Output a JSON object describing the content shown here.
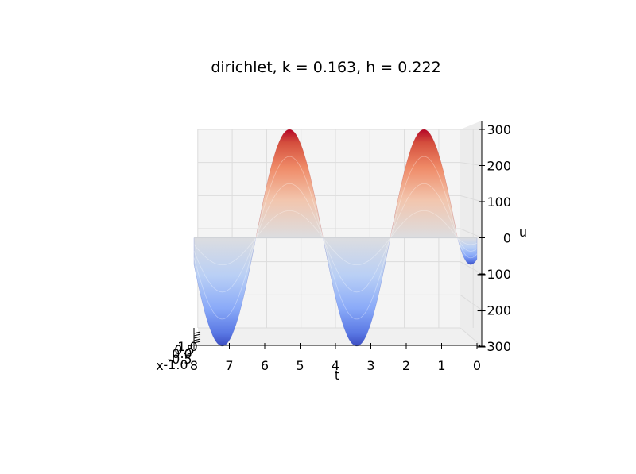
{
  "chart_data": {
    "type": "surface3d",
    "title": "dirichlet, k = 0.163, h = 0.222",
    "xlabel": "x",
    "tlabel": "t",
    "zlabel": "u",
    "t_ticks": [
      "8",
      "7",
      "6",
      "5",
      "4",
      "3",
      "2",
      "1",
      "0"
    ],
    "x_ticks": [
      "-1.0",
      "-0.5",
      "0.0",
      "0.5",
      "1.0"
    ],
    "z_ticks": [
      "300",
      "200",
      "100",
      "0",
      "−100",
      "−200",
      "−300"
    ],
    "t_range": [
      0,
      8
    ],
    "z_range": [
      -300,
      300
    ],
    "grid": true,
    "colormap": "coolwarm",
    "surface_peaks": [
      {
        "t": 7.2,
        "u": -300
      },
      {
        "t": 5.3,
        "u": 300
      },
      {
        "t": 3.4,
        "u": -300
      },
      {
        "t": 1.5,
        "u": 300
      },
      {
        "t": 0.3,
        "u": -70
      }
    ]
  }
}
